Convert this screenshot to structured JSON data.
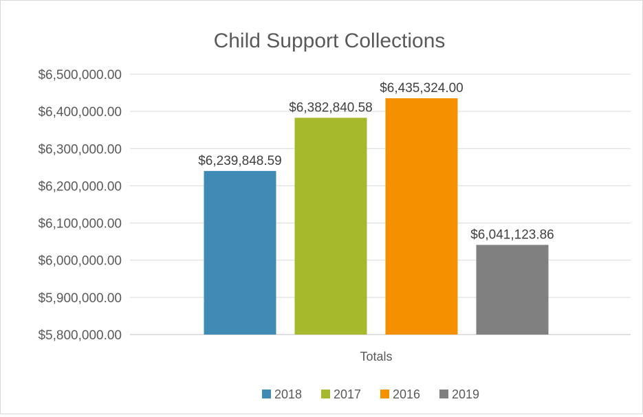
{
  "chart_data": {
    "type": "bar",
    "title": "Child Support Collections",
    "categories": [
      "Totals"
    ],
    "series": [
      {
        "name": "2018",
        "values": [
          6239848.59
        ],
        "label": "$6,239,848.59",
        "color": "#3f8bb6"
      },
      {
        "name": "2017",
        "values": [
          6382840.58
        ],
        "label": "$6,382,840.58",
        "color": "#a6b82c"
      },
      {
        "name": "2016",
        "values": [
          6435324.0
        ],
        "label": "$6,435,324.00",
        "color": "#f59100"
      },
      {
        "name": "2019",
        "values": [
          6041123.86
        ],
        "label": "$6,041,123.86",
        "color": "#808080"
      }
    ],
    "ylim": [
      5800000,
      6500000
    ],
    "yticks": [
      5800000,
      5900000,
      6000000,
      6100000,
      6200000,
      6300000,
      6400000,
      6500000
    ],
    "ytick_labels": [
      "$5,800,000.00",
      "$5,900,000.00",
      "$6,000,000.00",
      "$6,100,000.00",
      "$6,200,000.00",
      "$6,300,000.00",
      "$6,400,000.00",
      "$6,500,000.00"
    ],
    "grid": true,
    "legend_position": "bottom"
  }
}
